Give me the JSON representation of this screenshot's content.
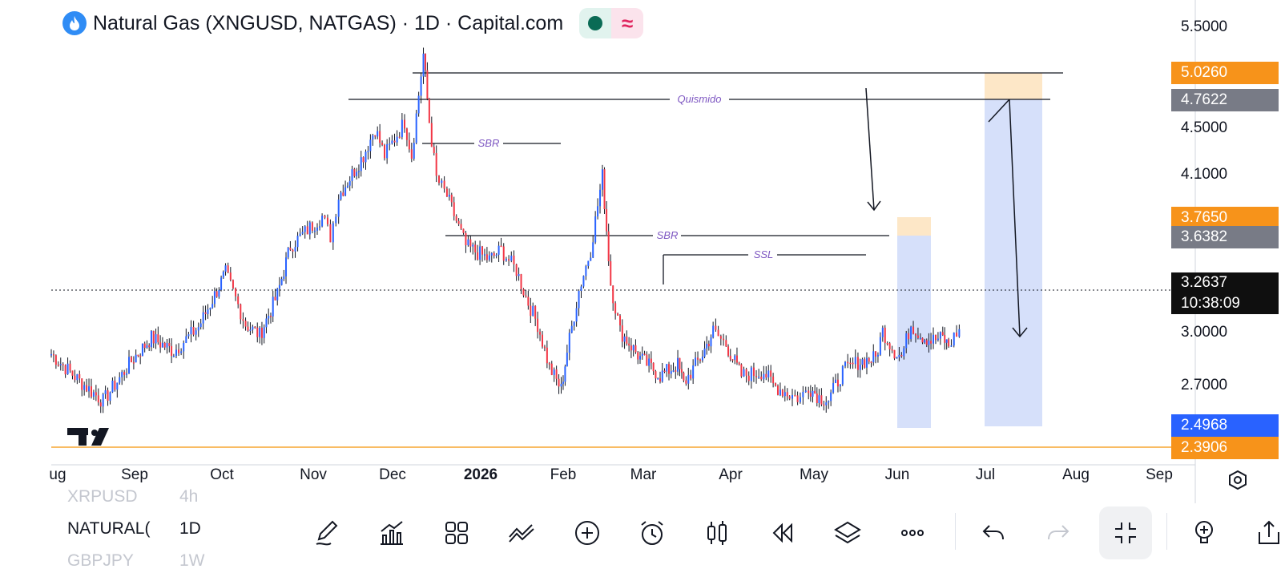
{
  "header": {
    "title": "Natural Gas (XNGUSD, NATGAS) · 1D · Capital.com",
    "icon": "flame-icon",
    "status_dot_color": "#0a6b55",
    "wave_symbol": "≈"
  },
  "price_axis": {
    "labels": [
      "5.5000",
      "4.5000",
      "4.1000",
      "3.0000",
      "2.7000"
    ],
    "tags": [
      {
        "value": "5.0260",
        "color": "#f7931a"
      },
      {
        "value": "4.7622",
        "color": "#787b86"
      },
      {
        "value": "3.7650",
        "color": "#f7931a"
      },
      {
        "value": "3.6382",
        "color": "#787b86"
      },
      {
        "value": "2.4968",
        "color": "#2962ff"
      },
      {
        "value": "2.3906",
        "color": "#f7931a"
      }
    ],
    "current_price": "3.2637",
    "countdown": "10:38:09"
  },
  "time_axis": {
    "labels": [
      "ug",
      "Sep",
      "Oct",
      "Nov",
      "Dec",
      "2026",
      "Feb",
      "Mar",
      "Apr",
      "May",
      "Jun",
      "Jul",
      "Aug",
      "Sep"
    ]
  },
  "annotations": {
    "quasimodo": "Quismido",
    "sbr_top": "SBR",
    "sbr_mid": "SBR",
    "ssl": "SSL"
  },
  "watchlist": [
    {
      "symbol": "XRPUSD",
      "timeframe": "4h"
    },
    {
      "symbol": "NATURAL(",
      "timeframe": "1D"
    },
    {
      "symbol": "GBPJPY",
      "timeframe": "1W"
    }
  ],
  "toolbar": {
    "icons": [
      "pencil-icon",
      "indicators-icon",
      "grid-layout-icon",
      "drawing-tools-icon",
      "add-icon",
      "alarm-icon",
      "candles-icon",
      "replay-icon",
      "layers-icon",
      "more-icon",
      "undo-icon",
      "redo-icon",
      "collapse-icon",
      "lightbulb-icon",
      "share-icon"
    ]
  },
  "colors": {
    "up": "#2962ff",
    "down": "#f23645",
    "zone_blue": "#d6e0fa",
    "zone_orange": "#fde7c7"
  },
  "chart_data": {
    "type": "candlestick",
    "symbol": "XNGUSD",
    "timeframe": "1D",
    "y_range": [
      2.39,
      5.55
    ],
    "current_price": 3.2637,
    "x_labels": [
      "ug",
      "Sep",
      "Oct",
      "Nov",
      "Dec",
      "2026",
      "Feb",
      "Mar",
      "Apr",
      "May",
      "Jun",
      "Jul",
      "Aug",
      "Sep"
    ],
    "path": [
      [
        0.0,
        3.08
      ],
      [
        2.4,
        2.88
      ],
      [
        4.4,
        2.73
      ],
      [
        7.0,
        3.05
      ],
      [
        8.5,
        3.2
      ],
      [
        10.4,
        3.1
      ],
      [
        12.5,
        3.28
      ],
      [
        13.5,
        3.45
      ],
      [
        14.8,
        3.68
      ],
      [
        16.5,
        3.3
      ],
      [
        17.7,
        3.22
      ],
      [
        19.2,
        3.52
      ],
      [
        20.3,
        3.88
      ],
      [
        23.0,
        4.1
      ],
      [
        23.7,
        3.95
      ],
      [
        24.4,
        4.25
      ],
      [
        26.5,
        4.55
      ],
      [
        27.5,
        4.75
      ],
      [
        28.3,
        4.55
      ],
      [
        30.0,
        4.8
      ],
      [
        30.6,
        4.55
      ],
      [
        31.6,
        5.3
      ],
      [
        32.1,
        4.8
      ],
      [
        32.7,
        4.38
      ],
      [
        33.6,
        4.25
      ],
      [
        35.2,
        3.88
      ],
      [
        37.2,
        3.78
      ],
      [
        38.2,
        3.85
      ],
      [
        39.5,
        3.7
      ],
      [
        40.3,
        3.5
      ],
      [
        41.3,
        3.3
      ],
      [
        42.3,
        2.98
      ],
      [
        43.3,
        2.82
      ],
      [
        43.8,
        3.1
      ],
      [
        44.8,
        3.55
      ],
      [
        45.8,
        3.85
      ],
      [
        46.8,
        4.4
      ],
      [
        47.5,
        3.6
      ],
      [
        48.3,
        3.25
      ],
      [
        50.0,
        3.05
      ],
      [
        51.7,
        2.92
      ],
      [
        53.2,
        3.0
      ],
      [
        53.7,
        2.86
      ],
      [
        55.3,
        3.08
      ],
      [
        56.2,
        3.25
      ],
      [
        57.3,
        3.15
      ],
      [
        58.6,
        2.92
      ],
      [
        60.5,
        2.95
      ],
      [
        61.3,
        2.85
      ],
      [
        62.7,
        2.78
      ],
      [
        63.6,
        2.75
      ],
      [
        64.3,
        2.84
      ],
      [
        65.2,
        2.76
      ],
      [
        66.0,
        2.74
      ],
      [
        67.2,
        2.95
      ],
      [
        68.5,
        3.02
      ],
      [
        70.0,
        3.05
      ],
      [
        70.6,
        3.25
      ],
      [
        71.6,
        3.1
      ],
      [
        72.2,
        3.06
      ],
      [
        73.0,
        3.3
      ],
      [
        73.8,
        3.22
      ],
      [
        74.7,
        3.18
      ],
      [
        75.7,
        3.2
      ],
      [
        76.2,
        3.14
      ],
      [
        77.1,
        3.27
      ]
    ]
  }
}
